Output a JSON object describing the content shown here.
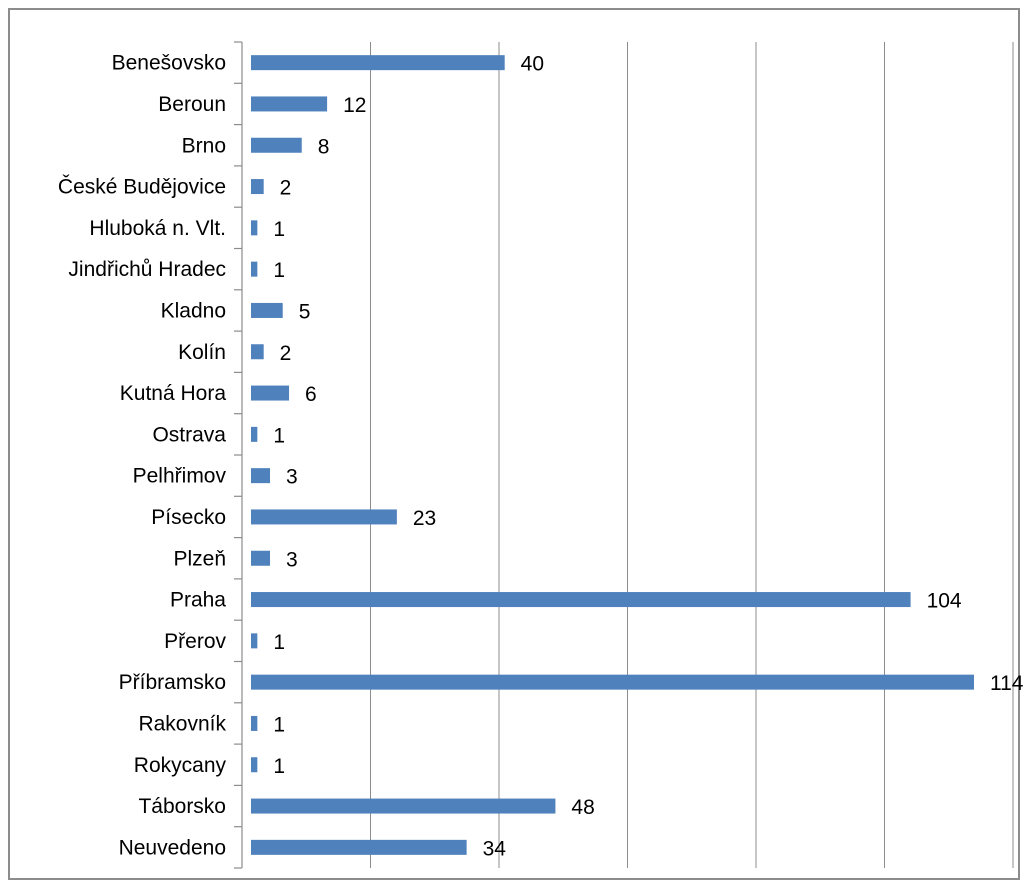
{
  "chart_data": {
    "type": "bar",
    "orientation": "horizontal",
    "title": "",
    "xlabel": "",
    "ylabel": "",
    "categories": [
      "Benešovsko",
      "Beroun",
      "Brno",
      "České Budějovice",
      "Hluboká n. Vlt.",
      "Jindřichů Hradec",
      "Kladno",
      "Kolín",
      "Kutná Hora",
      "Ostrava",
      "Pelhřimov",
      "Písecko",
      "Plzeň",
      "Praha",
      "Přerov",
      "Příbramsko",
      "Rakovník",
      "Rokycany",
      "Táborsko",
      "Neuvedeno"
    ],
    "values": [
      40,
      12,
      8,
      2,
      1,
      1,
      5,
      2,
      6,
      1,
      3,
      23,
      3,
      104,
      1,
      114,
      1,
      1,
      48,
      34
    ],
    "xlim": [
      0,
      120
    ],
    "grid": true,
    "data_labels": true,
    "legend": "none",
    "bar_color": "#4f81bd"
  }
}
